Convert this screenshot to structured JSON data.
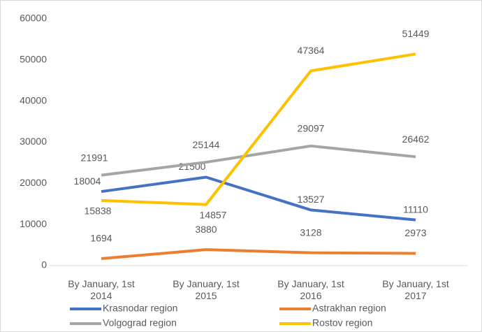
{
  "chart_data": {
    "type": "line",
    "categories": [
      "By January, 1st 2014",
      "By January, 1st 2015",
      "By January, 1st 2016",
      "By January, 1st 2017"
    ],
    "series": [
      {
        "name": "Krasnodar region",
        "color": "#4472c4",
        "values": [
          18004,
          21500,
          13527,
          11110
        ]
      },
      {
        "name": "Astrakhan region",
        "color": "#ed7d31",
        "values": [
          1694,
          3880,
          3128,
          2973
        ]
      },
      {
        "name": "Volgograd region",
        "color": "#a5a5a5",
        "values": [
          21991,
          25144,
          29097,
          26462
        ]
      },
      {
        "name": "Rostov region",
        "color": "#ffc000",
        "values": [
          15838,
          14857,
          47364,
          51449
        ]
      }
    ],
    "ylim": [
      0,
      60000
    ],
    "yticks": [
      0,
      10000,
      20000,
      30000,
      40000,
      50000,
      60000
    ],
    "grid": false
  }
}
